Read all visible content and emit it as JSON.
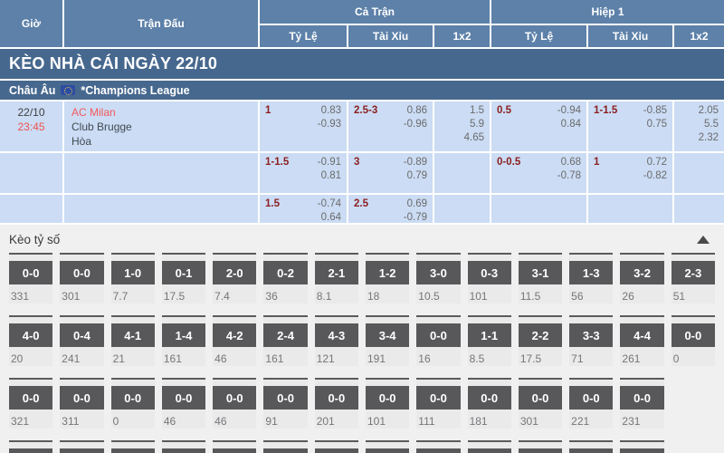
{
  "header": {
    "col_time": "Giờ",
    "col_match": "Trận Đấu",
    "group_full_match": "Cả Trận",
    "group_first_half": "Hiệp 1",
    "col_handicap": "Tỷ Lệ",
    "col_over_under": "Tài Xỉu",
    "col_1x2": "1x2",
    "col_1x2_h1": "1x2"
  },
  "banner": {
    "title": "KÈO NHÀ CÁI NGÀY 22/10"
  },
  "league": {
    "region": "Châu Âu",
    "flag_icon": "eu-flag-icon",
    "name": "*Champions League"
  },
  "match": {
    "date": "22/10",
    "kickoff": "23:45",
    "home_team": "AC Milan",
    "away_team": "Club Brugge",
    "draw_label": "Hòa",
    "odds_rows": [
      {
        "ft_hdp": {
          "line": "1",
          "v1": "0.83",
          "v2": "-0.93"
        },
        "ft_ou": {
          "line": "2.5-3",
          "v1": "0.86",
          "v2": "-0.96"
        },
        "ft_1x2": [
          "1.5",
          "5.9",
          "4.65"
        ],
        "h1_hdp": {
          "line": "0.5",
          "v1": "-0.94",
          "v2": "0.84"
        },
        "h1_ou": {
          "line": "1-1.5",
          "v1": "-0.85",
          "v2": "0.75"
        },
        "h1_1x2": [
          "2.05",
          "5.5",
          "2.32"
        ]
      },
      {
        "ft_hdp": {
          "line": "1-1.5",
          "v1": "-0.91",
          "v2": "0.81"
        },
        "ft_ou": {
          "line": "3",
          "v1": "-0.89",
          "v2": "0.79"
        },
        "ft_1x2": [],
        "h1_hdp": {
          "line": "0-0.5",
          "v1": "0.68",
          "v2": "-0.78"
        },
        "h1_ou": {
          "line": "1",
          "v1": "0.72",
          "v2": "-0.82"
        },
        "h1_1x2": []
      },
      {
        "ft_hdp": {
          "line": "1.5",
          "v1": "-0.74",
          "v2": "0.64"
        },
        "ft_ou": {
          "line": "2.5",
          "v1": "0.69",
          "v2": "-0.79"
        },
        "ft_1x2": [],
        "h1_hdp": null,
        "h1_ou": null,
        "h1_1x2": []
      }
    ]
  },
  "correct_score": {
    "title": "Kèo tỷ số",
    "toggle_icon": "chevron-up-icon",
    "columns": 14,
    "rows": [
      [
        {
          "score": "0-0",
          "odds": "331"
        },
        {
          "score": "0-0",
          "odds": "301"
        },
        {
          "score": "1-0",
          "odds": "7.7"
        },
        {
          "score": "0-1",
          "odds": "17.5"
        },
        {
          "score": "2-0",
          "odds": "7.4"
        },
        {
          "score": "0-2",
          "odds": "36"
        },
        {
          "score": "2-1",
          "odds": "8.1"
        },
        {
          "score": "1-2",
          "odds": "18"
        },
        {
          "score": "3-0",
          "odds": "10.5"
        },
        {
          "score": "0-3",
          "odds": "101"
        },
        {
          "score": "3-1",
          "odds": "11.5"
        },
        {
          "score": "1-3",
          "odds": "56"
        },
        {
          "score": "3-2",
          "odds": "26"
        },
        {
          "score": "2-3",
          "odds": "51"
        }
      ],
      [
        {
          "score": "4-0",
          "odds": "20"
        },
        {
          "score": "0-4",
          "odds": "241"
        },
        {
          "score": "4-1",
          "odds": "21"
        },
        {
          "score": "1-4",
          "odds": "161"
        },
        {
          "score": "4-2",
          "odds": "46"
        },
        {
          "score": "2-4",
          "odds": "161"
        },
        {
          "score": "4-3",
          "odds": "121"
        },
        {
          "score": "3-4",
          "odds": "191"
        },
        {
          "score": "0-0",
          "odds": "16"
        },
        {
          "score": "1-1",
          "odds": "8.5"
        },
        {
          "score": "2-2",
          "odds": "17.5"
        },
        {
          "score": "3-3",
          "odds": "71"
        },
        {
          "score": "4-4",
          "odds": "261"
        },
        {
          "score": "0-0",
          "odds": "0"
        }
      ],
      [
        {
          "score": "0-0",
          "odds": "321"
        },
        {
          "score": "0-0",
          "odds": "311"
        },
        {
          "score": "0-0",
          "odds": "0"
        },
        {
          "score": "0-0",
          "odds": "46"
        },
        {
          "score": "0-0",
          "odds": "46"
        },
        {
          "score": "0-0",
          "odds": "91"
        },
        {
          "score": "0-0",
          "odds": "201"
        },
        {
          "score": "0-0",
          "odds": "101"
        },
        {
          "score": "0-0",
          "odds": "111"
        },
        {
          "score": "0-0",
          "odds": "181"
        },
        {
          "score": "0-0",
          "odds": "301"
        },
        {
          "score": "0-0",
          "odds": "221"
        },
        {
          "score": "0-0",
          "odds": "231"
        }
      ]
    ],
    "partial_fourth_row_cells": 13
  },
  "colors": {
    "header_blue": "#5d81a9",
    "banner_blue": "#47688e",
    "cell_blue": "#cbdcf4",
    "handicap_red": "#8b1e1e",
    "team_red": "#f4595c",
    "time_red": "#ef5350",
    "odds_gray": "#6b6b6b",
    "score_box_dark": "#58585a"
  }
}
